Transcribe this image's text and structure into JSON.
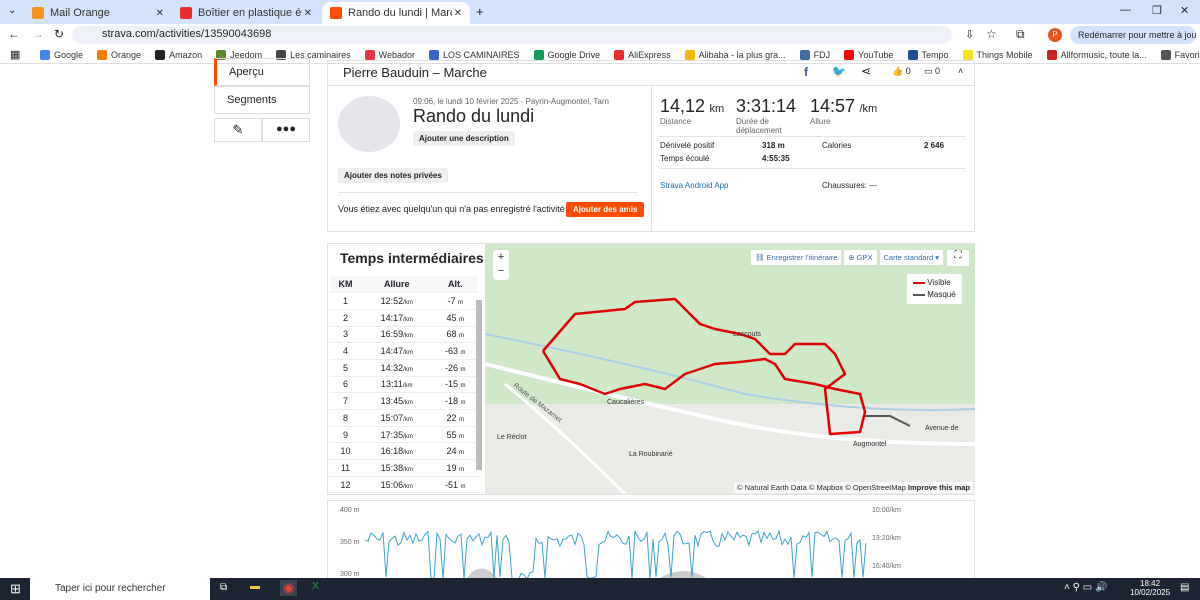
{
  "browser": {
    "tabs": [
      {
        "title": "Mail Orange",
        "color": "#f7931e"
      },
      {
        "title": "Boîtier en plastique étanche ext",
        "color": "#e62e2e"
      },
      {
        "title": "Rando du lundi | Marche | Strava",
        "color": "#fc4c02"
      }
    ],
    "url": "strava.com/activities/13590043698",
    "restart_label": "Redémarrer pour mettre à jour",
    "profile_initial": "P",
    "bookmarks": [
      "Google",
      "Orange",
      "Amazon",
      "Jeedom",
      "Les caminaires",
      "Webador",
      "LOS CAMINAIRES",
      "Google Drive",
      "AliExpress",
      "Alibaba - la plus gra...",
      "FDJ",
      "YouTube",
      "Tempo",
      "Things Mobile",
      "Allformusic, toute la...",
      "Favoris"
    ]
  },
  "sidebar": {
    "items": [
      "Aperçu",
      "Segments"
    ]
  },
  "header": {
    "title": "Pierre Bauduin – Marche",
    "kudos": "0",
    "comments": "0"
  },
  "activity": {
    "meta": "09:06, le lundi 10 février 2025 · Payrin-Augmontel, Tarn",
    "title": "Rando du lundi",
    "add_description": "Ajouter une description",
    "add_notes": "Ajouter des notes privées",
    "prompt": "Vous étiez avec quelqu'un qui n'a pas enregistré l'activité ?",
    "add_friends": "Ajouter des amis",
    "distance": "14,12",
    "distance_unit": "km",
    "distance_label": "Distance",
    "moving_time": "3:31:14",
    "moving_label": "Durée de déplacement",
    "pace": "14:57",
    "pace_unit": "/km",
    "pace_label": "Allure",
    "elev_label": "Dénivelé positif",
    "elev": "318 m",
    "elapsed_label": "Temps écoulé",
    "elapsed": "4:55:35",
    "cal_label": "Calories",
    "cal": "2 646",
    "device": "Strava Android App",
    "shoes": "Chaussures: —"
  },
  "splits": {
    "title": "Temps intermédiaires",
    "headers": [
      "KM",
      "Allure",
      "Alt."
    ],
    "rows": [
      [
        "1",
        "12:52",
        "-7"
      ],
      [
        "2",
        "14:17",
        "45"
      ],
      [
        "3",
        "16:59",
        "68"
      ],
      [
        "4",
        "14:47",
        "-63"
      ],
      [
        "5",
        "14:32",
        "-26"
      ],
      [
        "6",
        "13:11",
        "-15"
      ],
      [
        "7",
        "13:45",
        "-18"
      ],
      [
        "8",
        "15:07",
        "22"
      ],
      [
        "9",
        "17:35",
        "55"
      ],
      [
        "10",
        "16:18",
        "24"
      ],
      [
        "11",
        "15:38",
        "19"
      ],
      [
        "12",
        "15:06",
        "-51"
      ]
    ],
    "pace_unit": "/km",
    "alt_unit": "m"
  },
  "map": {
    "save_route": "Enregistrer l'itinéraire",
    "gpx": "GPX",
    "style": "Carte standard",
    "legend": [
      {
        "label": "Visible",
        "color": "#e00000"
      },
      {
        "label": "Masqué",
        "color": "#555555"
      }
    ],
    "places": [
      "Lascouts",
      "Caucalières",
      "Le Réclot",
      "La Roubinarié",
      "Augmontel",
      "Route de Mazamet",
      "Avenue de"
    ],
    "attribution": "© Natural Earth Data © Mapbox © OpenStreetMap",
    "improve": "Improve this map",
    "route_color": "#e00000"
  },
  "profile_chart": {
    "left_ticks": [
      "400 m",
      "350 m",
      "300 m"
    ],
    "right_ticks": [
      "10:00/km",
      "13:20/km",
      "16:40/km"
    ],
    "line_color": "#3ba3d0"
  },
  "taskbar": {
    "search": "Taper ici pour rechercher",
    "time": "18:42",
    "date": "10/02/2025"
  }
}
